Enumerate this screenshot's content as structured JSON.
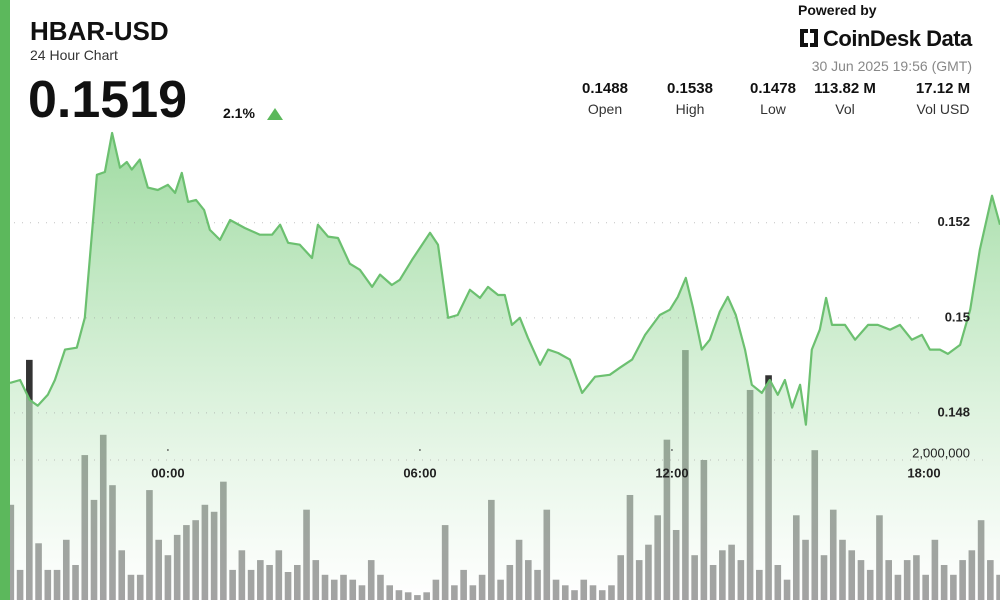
{
  "header": {
    "pair": "HBAR-USD",
    "subtitle": "24 Hour Chart",
    "price": "0.1519",
    "change": "2.1%",
    "powered_by": "Powered by",
    "brand": "CoinDesk Data",
    "timestamp": "30 Jun 2025 19:56 (GMT)",
    "stats": [
      {
        "value": "0.1488",
        "label": "Open"
      },
      {
        "value": "0.1538",
        "label": "High"
      },
      {
        "value": "0.1478",
        "label": "Low"
      },
      {
        "value": "113.82 M",
        "label": "Vol"
      },
      {
        "value": "17.12 M",
        "label": "Vol USD"
      }
    ]
  },
  "chart_data": {
    "type": "line",
    "price": {
      "color": "#6cc070",
      "x": [
        -3.76,
        -3.52,
        -3.29,
        -3.1,
        -2.86,
        -2.69,
        -2.45,
        -2.17,
        -1.98,
        -1.69,
        -1.5,
        -1.33,
        -1.14,
        -0.98,
        -0.86,
        -0.67,
        -0.48,
        -0.24,
        0,
        0.17,
        0.33,
        0.48,
        0.67,
        0.86,
        1.0,
        1.24,
        1.48,
        1.83,
        2.19,
        2.48,
        2.67,
        2.86,
        3.14,
        3.43,
        3.57,
        3.81,
        4.05,
        4.33,
        4.57,
        4.86,
        5.05,
        5.33,
        5.52,
        5.81,
        6.0,
        6.24,
        6.43,
        6.67,
        6.9,
        7.19,
        7.43,
        7.62,
        7.86,
        8.02,
        8.19,
        8.38,
        8.57,
        8.86,
        9.05,
        9.29,
        9.57,
        9.86,
        10.17,
        10.52,
        10.76,
        11.05,
        11.36,
        11.71,
        11.95,
        12.14,
        12.33,
        12.5,
        12.71,
        12.9,
        13.14,
        13.33,
        13.52,
        13.74,
        13.9,
        14.14,
        14.33,
        14.52,
        14.69,
        14.86,
        15.05,
        15.19,
        15.33,
        15.52,
        15.67,
        15.81,
        16.12,
        16.36,
        16.67,
        16.9,
        17.19,
        17.43,
        17.71,
        17.95,
        18.14,
        18.38,
        18.57,
        18.86,
        19.1,
        19.33,
        19.62,
        19.81
      ],
      "values": [
        0.14863,
        0.14869,
        0.14827,
        0.14815,
        0.14838,
        0.14869,
        0.14933,
        0.14937,
        0.15,
        0.15301,
        0.15307,
        0.15389,
        0.15316,
        0.15328,
        0.15312,
        0.15333,
        0.15274,
        0.15269,
        0.1528,
        0.15263,
        0.15305,
        0.15244,
        0.15248,
        0.15227,
        0.15185,
        0.15164,
        0.15206,
        0.15189,
        0.15175,
        0.15175,
        0.15196,
        0.15158,
        0.15154,
        0.15126,
        0.15196,
        0.15171,
        0.15168,
        0.15114,
        0.15101,
        0.15065,
        0.15091,
        0.15069,
        0.1508,
        0.15122,
        0.15147,
        0.15179,
        0.15154,
        0.15,
        0.15006,
        0.15059,
        0.15042,
        0.15065,
        0.15048,
        0.15048,
        0.14985,
        0.15,
        0.14958,
        0.14901,
        0.14933,
        0.14926,
        0.14912,
        0.14842,
        0.14876,
        0.1488,
        0.14895,
        0.14912,
        0.14964,
        0.15006,
        0.15017,
        0.15044,
        0.15084,
        0.15021,
        0.14933,
        0.14954,
        0.15013,
        0.15044,
        0.15006,
        0.14933,
        0.14859,
        0.14842,
        0.14869,
        0.14838,
        0.14869,
        0.14811,
        0.14859,
        0.14775,
        0.14933,
        0.14975,
        0.15042,
        0.14985,
        0.14985,
        0.14954,
        0.14985,
        0.14985,
        0.14975,
        0.14985,
        0.14954,
        0.14964,
        0.14933,
        0.14933,
        0.14924,
        0.14943,
        0.15017,
        0.15143,
        0.15257,
        0.15196
      ]
    },
    "volume": {
      "color": "#333333",
      "axis": "y2",
      "x": [
        -3.74,
        -3.52,
        -3.3,
        -3.08,
        -2.86,
        -2.64,
        -2.42,
        -2.2,
        -1.98,
        -1.76,
        -1.54,
        -1.32,
        -1.1,
        -0.88,
        -0.66,
        -0.44,
        -0.22,
        0,
        0.22,
        0.44,
        0.66,
        0.88,
        1.1,
        1.32,
        1.54,
        1.76,
        1.98,
        2.2,
        2.42,
        2.64,
        2.86,
        3.08,
        3.3,
        3.52,
        3.74,
        3.96,
        4.18,
        4.4,
        4.62,
        4.84,
        5.06,
        5.28,
        5.5,
        5.72,
        5.94,
        6.16,
        6.38,
        6.6,
        6.82,
        7.04,
        7.26,
        7.48,
        7.7,
        7.92,
        8.14,
        8.36,
        8.58,
        8.8,
        9.02,
        9.24,
        9.46,
        9.68,
        9.9,
        10.12,
        10.34,
        10.56,
        10.78,
        11,
        11.22,
        11.44,
        11.66,
        11.88,
        12.1,
        12.32,
        12.54,
        12.76,
        12.98,
        13.2,
        13.42,
        13.64,
        13.86,
        14.08,
        14.3,
        14.52,
        14.74,
        14.96,
        15.18,
        15.4,
        15.62,
        15.84,
        16.06,
        16.28,
        16.5,
        16.72,
        16.94,
        17.16,
        17.38,
        17.6,
        17.82,
        18.04,
        18.26,
        18.48,
        18.7,
        18.92,
        19.14,
        19.36,
        19.58,
        19.8
      ],
      "values": [
        1360000,
        430000,
        3430000,
        810000,
        430000,
        430000,
        860000,
        500000,
        2070000,
        1430000,
        2360000,
        1640000,
        710000,
        360000,
        360000,
        1570000,
        860000,
        640000,
        930000,
        1070000,
        1140000,
        1360000,
        1260000,
        1690000,
        430000,
        710000,
        430000,
        570000,
        500000,
        710000,
        400000,
        500000,
        1290000,
        570000,
        360000,
        290000,
        360000,
        290000,
        210000,
        570000,
        360000,
        210000,
        140000,
        110000,
        70000,
        110000,
        290000,
        1070000,
        210000,
        430000,
        210000,
        360000,
        1430000,
        290000,
        500000,
        860000,
        570000,
        430000,
        1290000,
        290000,
        210000,
        140000,
        290000,
        210000,
        140000,
        210000,
        640000,
        1500000,
        570000,
        790000,
        1210000,
        2290000,
        1000000,
        3570000,
        640000,
        2000000,
        500000,
        710000,
        790000,
        570000,
        3000000,
        430000,
        3210000,
        500000,
        290000,
        1210000,
        860000,
        2140000,
        640000,
        1290000,
        860000,
        710000,
        570000,
        430000,
        1210000,
        570000,
        360000,
        570000,
        640000,
        360000,
        860000,
        500000,
        360000,
        570000,
        710000,
        1140000,
        570000,
        360000
      ]
    },
    "xlim": [
      -3.76,
      19.81
    ],
    "xticks": [
      {
        "value": 0,
        "label": "00:00"
      },
      {
        "value": 6,
        "label": "06:00"
      },
      {
        "value": 12,
        "label": "12:00"
      },
      {
        "value": 18,
        "label": "18:00"
      }
    ],
    "ylim": [
      0.14406,
      0.15669
    ],
    "yticks": [
      0.148,
      0.15,
      0.152
    ],
    "y2lim": [
      0,
      8570000
    ],
    "y2ticks": [
      {
        "value": 2000000,
        "label": "2,000,000"
      }
    ],
    "grid": true
  }
}
